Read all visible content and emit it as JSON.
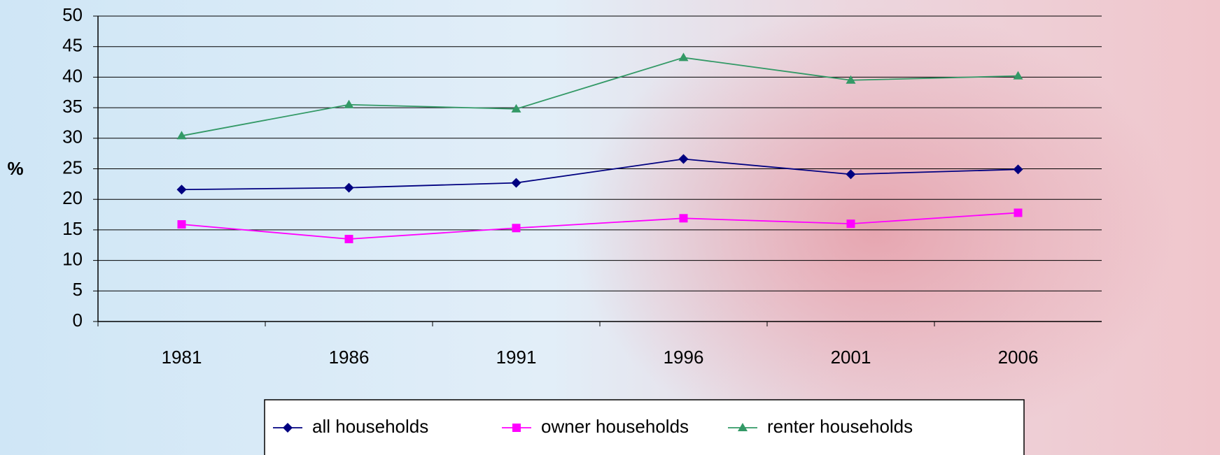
{
  "chart_data": {
    "type": "line",
    "y_label": "%",
    "categories": [
      "1981",
      "1986",
      "1991",
      "1996",
      "2001",
      "2006"
    ],
    "series": [
      {
        "name": "all households",
        "color": "#000080",
        "marker": "diamond",
        "values": [
          21.6,
          21.9,
          22.7,
          26.6,
          24.1,
          24.9
        ]
      },
      {
        "name": "owner households",
        "color": "#ff00ff",
        "marker": "square",
        "values": [
          15.9,
          13.5,
          15.3,
          16.9,
          16.0,
          17.8
        ]
      },
      {
        "name": "renter households",
        "color": "#339966",
        "marker": "triangle",
        "values": [
          30.4,
          35.5,
          34.8,
          43.2,
          39.5,
          40.2
        ]
      }
    ],
    "ylim": [
      0,
      50
    ],
    "yticks": [
      0,
      5,
      10,
      15,
      20,
      25,
      30,
      35,
      40,
      45,
      50
    ],
    "grid": true,
    "legend": "bottom"
  }
}
